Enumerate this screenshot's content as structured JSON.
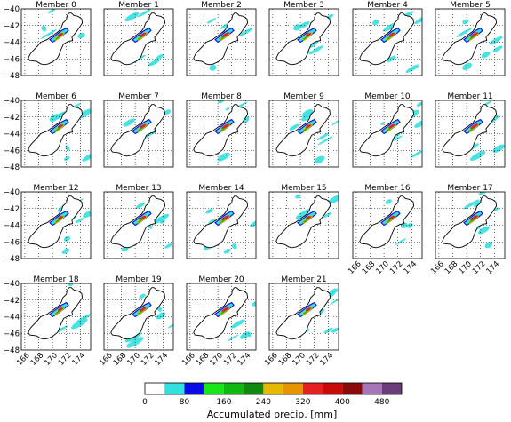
{
  "chart_data": {
    "type": "heatmap",
    "description_units": "degrees longitude (E) / latitude",
    "panels": [
      {
        "title": "Member 0"
      },
      {
        "title": "Member 1"
      },
      {
        "title": "Member 2"
      },
      {
        "title": "Member 3"
      },
      {
        "title": "Member 4"
      },
      {
        "title": "Member 5"
      },
      {
        "title": "Member 6"
      },
      {
        "title": "Member 7"
      },
      {
        "title": "Member 8"
      },
      {
        "title": "Member 9"
      },
      {
        "title": "Member 10"
      },
      {
        "title": "Member 11"
      },
      {
        "title": "Member 12"
      },
      {
        "title": "Member 13"
      },
      {
        "title": "Member 14"
      },
      {
        "title": "Member 15"
      },
      {
        "title": "Member 16"
      },
      {
        "title": "Member 17"
      },
      {
        "title": "Member 18"
      },
      {
        "title": "Member 19"
      },
      {
        "title": "Member 20"
      },
      {
        "title": "Member 21"
      }
    ],
    "xlim": [
      165.5,
      175.5
    ],
    "ylim": [
      -48,
      -40
    ],
    "x_ticks": [
      166,
      168,
      170,
      172,
      174
    ],
    "y_ticks": [
      -40,
      -42,
      -44,
      -46,
      -48
    ],
    "x_tick_labels": [
      "166",
      "168",
      "170",
      "172",
      "174"
    ],
    "y_tick_labels": [
      "−40",
      "−42",
      "−44",
      "−46",
      "−48"
    ],
    "grid": true,
    "grid_style": "dotted",
    "colorbar": {
      "label": "Accumulated precip. [mm]",
      "levels": [
        0,
        40,
        80,
        120,
        160,
        200,
        240,
        280,
        320,
        360,
        400,
        440,
        480,
        520
      ],
      "tick_values": [
        0,
        80,
        160,
        240,
        320,
        400,
        480
      ],
      "tick_labels": [
        "0",
        "80",
        "160",
        "240",
        "320",
        "400",
        "480"
      ],
      "colors": [
        "#ffffff",
        "#33e0e0",
        "#0a0ae6",
        "#19e619",
        "#12b812",
        "#0f8a0f",
        "#e6b800",
        "#e69500",
        "#e62020",
        "#c80a0a",
        "#8a0a0a",
        "#a676b8",
        "#6b3d7a"
      ]
    },
    "island_outline_lonlat": [
      [
        172.7,
        -40.5
      ],
      [
        173.1,
        -40.8
      ],
      [
        173.7,
        -40.9
      ],
      [
        174.2,
        -41.2
      ],
      [
        174.3,
        -41.7
      ],
      [
        173.9,
        -42.2
      ],
      [
        173.4,
        -42.8
      ],
      [
        172.8,
        -43.4
      ],
      [
        172.9,
        -43.8
      ],
      [
        172.3,
        -43.9
      ],
      [
        171.6,
        -44.2
      ],
      [
        171.2,
        -44.9
      ],
      [
        170.9,
        -45.6
      ],
      [
        170.7,
        -45.9
      ],
      [
        170.1,
        -46.3
      ],
      [
        169.4,
        -46.6
      ],
      [
        168.8,
        -46.7
      ],
      [
        168.3,
        -46.6
      ],
      [
        167.7,
        -46.3
      ],
      [
        166.7,
        -46.2
      ],
      [
        166.5,
        -45.9
      ],
      [
        166.8,
        -45.4
      ],
      [
        167.1,
        -45.1
      ],
      [
        167.8,
        -44.5
      ],
      [
        168.3,
        -44.0
      ],
      [
        169.2,
        -43.7
      ],
      [
        170.2,
        -43.1
      ],
      [
        170.9,
        -42.7
      ],
      [
        171.3,
        -42.2
      ],
      [
        171.5,
        -41.7
      ],
      [
        172.0,
        -41.3
      ],
      [
        172.1,
        -40.8
      ],
      [
        172.4,
        -40.5
      ],
      [
        172.7,
        -40.5
      ]
    ],
    "rain_core_lonlat": [
      [
        169.6,
        -43.7
      ],
      [
        170.4,
        -43.2
      ],
      [
        171.3,
        -42.6
      ],
      [
        172.0,
        -42.3
      ],
      [
        172.3,
        -42.6
      ],
      [
        171.6,
        -43.1
      ],
      [
        170.8,
        -43.6
      ],
      [
        170.0,
        -44.0
      ],
      [
        169.6,
        -43.7
      ]
    ],
    "rain_peak_lonlat": [
      [
        170.3,
        -43.6
      ],
      [
        170.9,
        -43.2
      ],
      [
        171.5,
        -42.8
      ],
      [
        171.7,
        -43.0
      ],
      [
        171.1,
        -43.4
      ],
      [
        170.5,
        -43.8
      ],
      [
        170.3,
        -43.6
      ]
    ]
  }
}
